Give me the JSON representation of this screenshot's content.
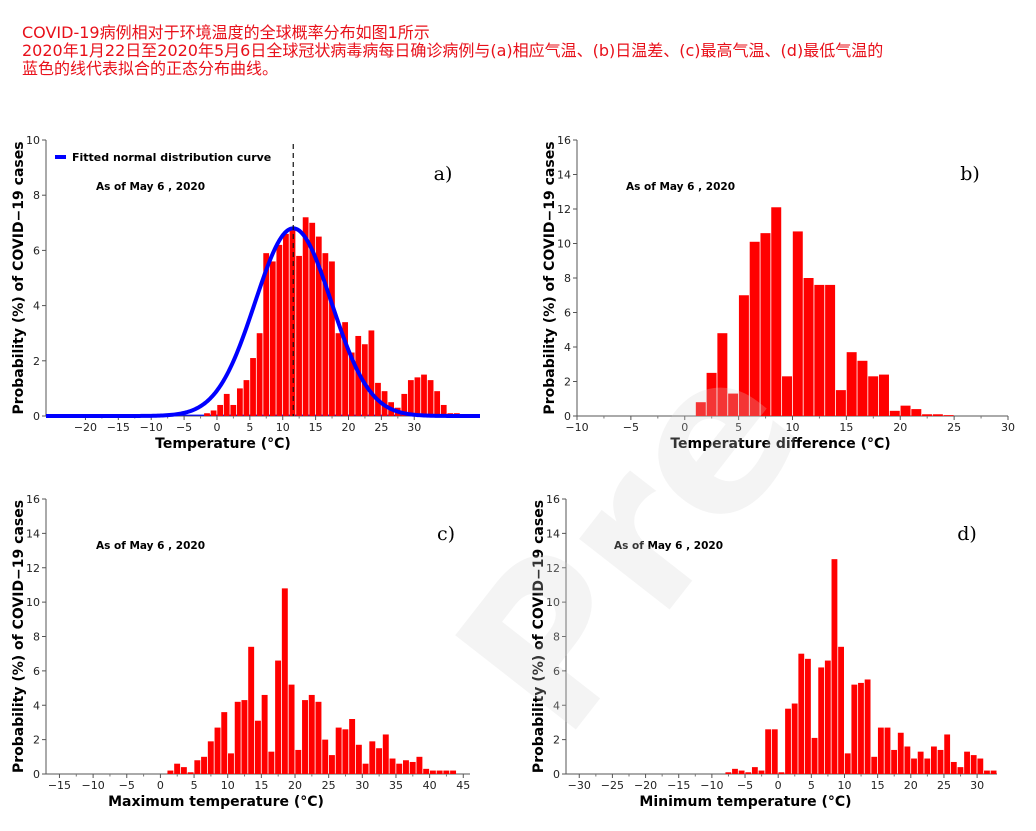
{
  "caption": {
    "line1": "COVID-19病例相对于环境温度的全球概率分布如图1所示",
    "line2": "2020年1月22日至2020年5月6日全球冠状病毒病每日确诊病例与(a)相应气温、(b)日温差、(c)最高气温、(d)最低气温的",
    "line3": "蓝色的线代表拟合的正态分布曲线。"
  },
  "watermark": "Pre",
  "colors": {
    "bars": "#ff0000",
    "curve": "#0000ff",
    "caption": "#e8101a"
  },
  "chart_data": [
    {
      "type": "bar",
      "panel_label": "a)",
      "annotation": "As of May 6 , 2020",
      "xlabel": "Temperature (°C)",
      "ylabel": "Probability (%) of COVID−19 cases",
      "xlim": [
        -26,
        40
      ],
      "ylim": [
        0,
        10
      ],
      "xticks": [
        -20,
        -15,
        -10,
        -5,
        0,
        5,
        10,
        15,
        20,
        25,
        30
      ],
      "yticks": [
        0,
        2,
        4,
        6,
        8,
        10
      ],
      "bin_start": -2,
      "bin_width": 1,
      "values": [
        0.1,
        0.2,
        0.4,
        0.8,
        0.4,
        1.0,
        1.3,
        2.1,
        3.0,
        5.9,
        5.6,
        6.2,
        6.6,
        6.8,
        5.8,
        7.2,
        7.0,
        6.5,
        5.9,
        5.6,
        3.0,
        3.4,
        2.3,
        2.9,
        2.6,
        3.1,
        1.2,
        0.9,
        0.5,
        0.3,
        0.8,
        1.3,
        1.4,
        1.5,
        1.3,
        0.9,
        0.4,
        0.1,
        0.1
      ],
      "fitted_curve": {
        "legend": "Fitted normal distribution curve",
        "mean": 11.6,
        "sd": 5.8,
        "peak": 6.8
      },
      "vline": 11.6
    },
    {
      "type": "bar",
      "panel_label": "b)",
      "annotation": "As of May 6 , 2020",
      "xlabel": "Temperature difference (°C)",
      "ylabel": "Probability (%) of COVID−19 cases",
      "xlim": [
        -10,
        30
      ],
      "ylim": [
        0,
        16
      ],
      "xticks": [
        -10,
        -5,
        0,
        5,
        10,
        15,
        20,
        25,
        30
      ],
      "yticks": [
        0,
        2,
        4,
        6,
        8,
        10,
        12,
        14,
        16
      ],
      "bin_start": 1,
      "bin_width": 1,
      "values": [
        0.8,
        2.5,
        4.8,
        1.3,
        7.0,
        10.1,
        10.6,
        12.1,
        2.3,
        10.7,
        8.0,
        7.6,
        7.6,
        1.5,
        3.7,
        3.2,
        2.3,
        2.4,
        0.3,
        0.6,
        0.4,
        0.1,
        0.1,
        0.05
      ]
    },
    {
      "type": "bar",
      "panel_label": "c)",
      "annotation": "As of May 6 , 2020",
      "xlabel": "Maximum temperature (°C)",
      "ylabel": "Probability (%) of COVID−19 cases",
      "xlim": [
        -17,
        46
      ],
      "ylim": [
        0,
        16
      ],
      "xticks": [
        -15,
        -10,
        -5,
        0,
        5,
        10,
        15,
        20,
        25,
        30,
        35,
        40,
        45
      ],
      "yticks": [
        0,
        2,
        4,
        6,
        8,
        10,
        12,
        14,
        16
      ],
      "bin_start": 1,
      "bin_width": 1,
      "values": [
        0.2,
        0.6,
        0.4,
        0.1,
        0.8,
        1.0,
        1.9,
        2.7,
        3.6,
        1.2,
        4.2,
        4.3,
        7.4,
        3.1,
        4.6,
        1.3,
        6.6,
        10.8,
        5.2,
        1.4,
        4.3,
        4.6,
        4.2,
        2.0,
        1.1,
        2.7,
        2.6,
        3.2,
        1.7,
        0.6,
        1.9,
        1.5,
        2.3,
        0.9,
        0.6,
        0.8,
        0.7,
        1.0,
        0.3,
        0.2,
        0.2,
        0.2,
        0.2
      ]
    },
    {
      "type": "bar",
      "panel_label": "d)",
      "annotation": "As of May 6 , 2020",
      "xlabel": "Minimum temperature (°C)",
      "ylabel": "Probability (%) of COVID−19 cases",
      "xlim": [
        -32,
        33
      ],
      "ylim": [
        0,
        16
      ],
      "xticks": [
        -30,
        -25,
        -20,
        -15,
        -10,
        -5,
        0,
        5,
        10,
        15,
        20,
        25,
        30
      ],
      "yticks": [
        0,
        2,
        4,
        6,
        8,
        10,
        12,
        14,
        16
      ],
      "bin_start": -8,
      "bin_width": 1,
      "values": [
        0.1,
        0.3,
        0.2,
        0.1,
        0.4,
        0.2,
        2.6,
        2.6,
        0.1,
        3.8,
        4.1,
        7.0,
        6.7,
        2.1,
        6.2,
        6.6,
        12.5,
        7.4,
        1.2,
        5.2,
        5.3,
        5.5,
        1.0,
        2.7,
        2.7,
        1.4,
        2.4,
        1.6,
        0.9,
        1.3,
        0.9,
        1.6,
        1.4,
        2.3,
        0.7,
        0.4,
        1.3,
        1.1,
        0.9,
        0.2,
        0.2
      ]
    }
  ]
}
